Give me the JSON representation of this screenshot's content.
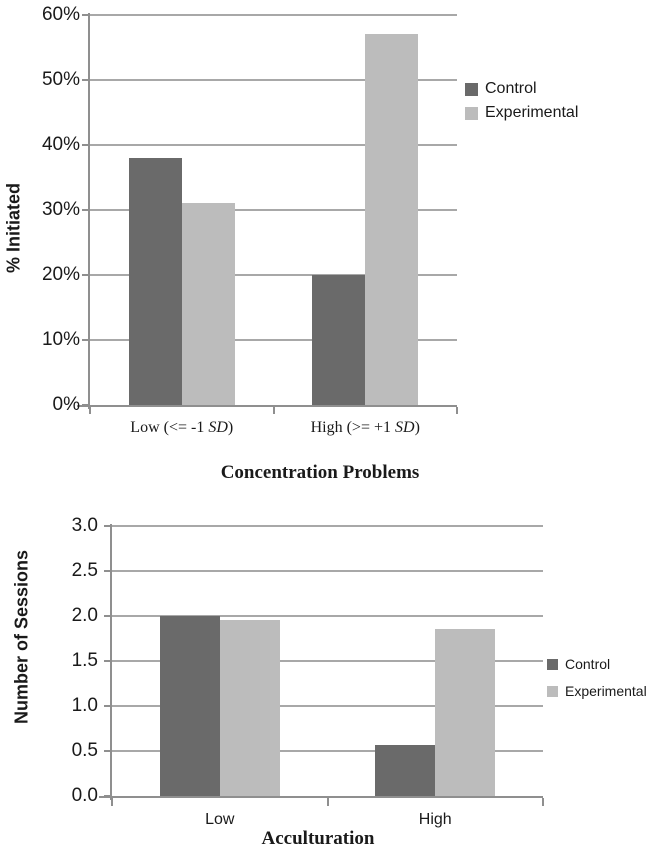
{
  "colors": {
    "control": "#6a6a6a",
    "experimental": "#bcbcbc",
    "gridline": "#a8a8a8",
    "axis": "#8f8f8f",
    "text": "#1a1a1a"
  },
  "chart_data": [
    {
      "type": "bar",
      "categories": [
        "Low (<= -1 SD)",
        "High (>= +1 SD)"
      ],
      "series": [
        {
          "name": "Control",
          "values": [
            38,
            20
          ]
        },
        {
          "name": "Experimental",
          "values": [
            31,
            57
          ]
        }
      ],
      "xlabel": "Concentration Problems",
      "ylabel": "% Initiated",
      "ylim": [
        0,
        60
      ],
      "yticks": [
        "0%",
        "10%",
        "20%",
        "30%",
        "40%",
        "50%",
        "60%"
      ],
      "grid": true,
      "legend_position": "right"
    },
    {
      "type": "bar",
      "categories": [
        "Low",
        "High"
      ],
      "series": [
        {
          "name": "Control",
          "values": [
            2.0,
            0.57
          ]
        },
        {
          "name": "Experimental",
          "values": [
            1.96,
            1.85
          ]
        }
      ],
      "xlabel": "Acculturation",
      "ylabel": "Number of Sessions",
      "ylim": [
        0,
        3.0
      ],
      "yticks": [
        "0.0",
        "0.5",
        "1.0",
        "1.5",
        "2.0",
        "2.5",
        "3.0"
      ],
      "grid": true,
      "legend_position": "right"
    }
  ]
}
